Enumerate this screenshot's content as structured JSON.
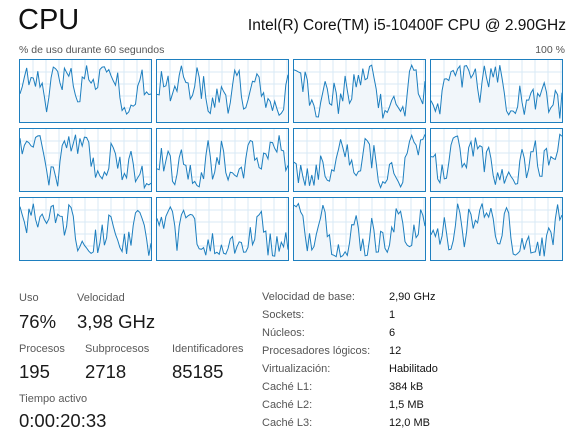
{
  "header": {
    "title": "CPU",
    "cpu_model": "Intel(R) Core(TM) i5-10400F CPU @ 2.90GHz",
    "graph_caption": "% de uso durante 60 segundos",
    "graph_max": "100 %"
  },
  "graph": {
    "logical_processors_shown": 12,
    "line_color": "#1e7fbf",
    "fill_color": "#f1f6fa",
    "grid_color": "#d9eaf5"
  },
  "stats": {
    "uso_label": "Uso",
    "uso_value": "76%",
    "velocidad_label": "Velocidad",
    "velocidad_value": "3,98 GHz",
    "procesos_label": "Procesos",
    "procesos_value": "195",
    "subprocesos_label": "Subprocesos",
    "subprocesos_value": "2718",
    "identificadores_label": "Identificadores",
    "identificadores_value": "85185",
    "tiempo_label": "Tiempo activo",
    "tiempo_value": "0:00:20:33"
  },
  "info": [
    {
      "key": "Velocidad de base:",
      "value": "2,90 GHz"
    },
    {
      "key": "Sockets:",
      "value": "1"
    },
    {
      "key": "Núcleos:",
      "value": "6"
    },
    {
      "key": "Procesadores lógicos:",
      "value": "12"
    },
    {
      "key": "Virtualización:",
      "value": "Habilitado"
    },
    {
      "key": "Caché L1:",
      "value": "384 kB"
    },
    {
      "key": "Caché L2:",
      "value": "1,5 MB"
    },
    {
      "key": "Caché L3:",
      "value": "12,0 MB"
    }
  ]
}
